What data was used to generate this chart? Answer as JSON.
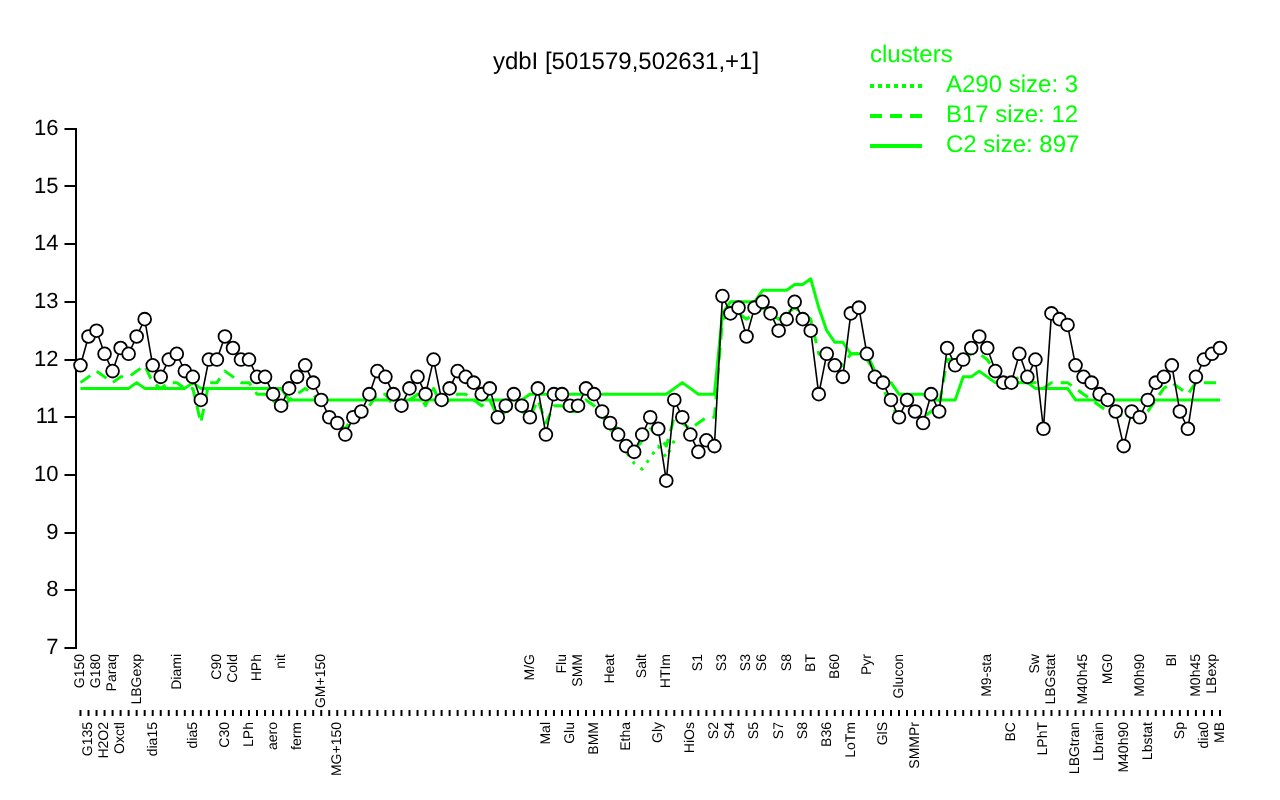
{
  "chart_data": {
    "type": "line",
    "title": "ydbI [501579,502631,+1]",
    "legend_title": "clusters",
    "legend": "top right",
    "grid": false,
    "ylim": [
      7,
      16
    ],
    "yticks": [
      7,
      8,
      9,
      10,
      11,
      12,
      13,
      14,
      15,
      16
    ],
    "categories": [
      "G150",
      "G135",
      "G180",
      "H2O2",
      "Paraq",
      "Oxctl",
      null,
      "LBGexp",
      null,
      "dia15",
      null,
      null,
      "Diami",
      null,
      "dia5",
      null,
      null,
      "C90",
      "C30",
      "Cold",
      null,
      "LPh",
      "HPh",
      null,
      "aero",
      "nit",
      null,
      "ferm",
      null,
      null,
      "GM+150",
      null,
      "MG+150",
      null,
      null,
      null,
      null,
      null,
      null,
      null,
      null,
      null,
      null,
      null,
      null,
      null,
      null,
      null,
      null,
      null,
      null,
      null,
      null,
      null,
      null,
      null,
      "M/G",
      null,
      "Mal",
      null,
      "Flu",
      "Glu",
      "SMM",
      null,
      "BMM",
      null,
      "Heat",
      null,
      "Etha",
      null,
      "Salt",
      null,
      "Gly",
      "HTIm",
      null,
      null,
      "HiOs",
      "S1",
      null,
      "S2",
      "S3",
      "S4",
      null,
      "S3",
      "S5",
      "S6",
      null,
      "S7",
      "S8",
      null,
      "S8",
      "BT",
      null,
      "B36",
      "B60",
      null,
      "LoTm",
      null,
      "Pyr",
      null,
      "GlS",
      null,
      "Glucon",
      null,
      "SMMPr",
      null,
      null,
      null,
      null,
      null,
      null,
      null,
      null,
      "M9-sta",
      null,
      null,
      "BC",
      null,
      null,
      "Sw",
      "LPhT",
      "LBGstat",
      null,
      null,
      "LBGtran",
      "M40h45",
      null,
      "Lbrain",
      "MG0",
      null,
      "M40h90",
      null,
      "M0h90",
      "Lbstat",
      null,
      null,
      "Bl",
      "Sp",
      null,
      "M0h45",
      "dia0",
      "LBexp",
      "MB"
    ],
    "series": [
      {
        "color": "#000000",
        "marker": "circle",
        "values": [
          11.9,
          12.4,
          12.5,
          12.1,
          11.8,
          12.2,
          12.1,
          12.4,
          12.7,
          11.9,
          11.7,
          12.0,
          12.1,
          11.8,
          11.7,
          11.3,
          12.0,
          12.0,
          12.4,
          12.2,
          12.0,
          12.0,
          11.7,
          11.7,
          11.4,
          11.2,
          11.5,
          11.7,
          11.9,
          11.6,
          11.3,
          11.0,
          10.9,
          10.7,
          11.0,
          11.1,
          11.4,
          11.8,
          11.7,
          11.4,
          11.2,
          11.5,
          11.7,
          11.4,
          12.0,
          11.3,
          11.5,
          11.8,
          11.7,
          11.6,
          11.4,
          11.5,
          11.0,
          11.2,
          11.4,
          11.2,
          11.0,
          11.5,
          10.7,
          11.4,
          11.4,
          11.2,
          11.2,
          11.5,
          11.4,
          11.1,
          10.9,
          10.7,
          10.5,
          10.4,
          10.7,
          11.0,
          10.8,
          9.9,
          11.3,
          11.0,
          10.7,
          10.4,
          10.6,
          10.5,
          13.1,
          12.8,
          12.9,
          12.4,
          12.9,
          13.0,
          12.8,
          12.5,
          12.7,
          13.0,
          12.7,
          12.5,
          11.4,
          12.1,
          11.9,
          11.7,
          12.8,
          12.9,
          12.1,
          11.7,
          11.6,
          11.3,
          11.0,
          11.3,
          11.1,
          10.9,
          11.4,
          11.1,
          12.2,
          11.9,
          12.0,
          12.2,
          12.4,
          12.2,
          11.8,
          11.6,
          11.6,
          12.1,
          11.7,
          12.0,
          10.8,
          12.8,
          12.7,
          12.6,
          11.9,
          11.7,
          11.6,
          11.4,
          11.3,
          11.1,
          10.5,
          11.1,
          11.0,
          11.3,
          11.6,
          11.7,
          11.9,
          11.1,
          10.8,
          11.7,
          12.0,
          12.1,
          12.2
        ]
      },
      {
        "name": "A290 size: 3",
        "color": "#00ff00",
        "marker": "none",
        "line_style": "dotted",
        "values": [
          null,
          null,
          null,
          null,
          null,
          null,
          null,
          null,
          null,
          null,
          null,
          null,
          null,
          null,
          null,
          null,
          null,
          null,
          null,
          null,
          null,
          null,
          null,
          null,
          null,
          null,
          null,
          null,
          null,
          null,
          null,
          null,
          null,
          null,
          null,
          null,
          null,
          null,
          null,
          null,
          null,
          null,
          null,
          null,
          null,
          null,
          null,
          null,
          null,
          null,
          null,
          null,
          null,
          null,
          null,
          null,
          null,
          null,
          null,
          null,
          null,
          null,
          null,
          null,
          null,
          null,
          10.8,
          10.6,
          10.4,
          10.2,
          10.1,
          10.3,
          10.5,
          10.3,
          10.6,
          null,
          null,
          null,
          null,
          null,
          null,
          null,
          null,
          null,
          null,
          null,
          null,
          null,
          null,
          null,
          null,
          null,
          null,
          null,
          null,
          null,
          null,
          null,
          null,
          null,
          null,
          null,
          null,
          null,
          null,
          null,
          null,
          null,
          null,
          null,
          null,
          null,
          null,
          null,
          null,
          null,
          null,
          null,
          null,
          null,
          null,
          null,
          null,
          null,
          null,
          null,
          null,
          null,
          null,
          null,
          null,
          null,
          null,
          null,
          null,
          null,
          null,
          null,
          null,
          null,
          null,
          null,
          null
        ]
      },
      {
        "name": "B17 size: 12",
        "color": "#00ff00",
        "marker": "none",
        "line_style": "dashed",
        "values": [
          11.6,
          11.7,
          11.8,
          11.7,
          11.6,
          11.7,
          11.7,
          11.8,
          11.9,
          11.6,
          11.5,
          11.6,
          11.6,
          11.5,
          11.5,
          10.9,
          11.6,
          11.6,
          11.8,
          11.7,
          11.6,
          11.6,
          11.4,
          11.4,
          11.3,
          11.1,
          11.3,
          11.4,
          11.5,
          11.4,
          11.2,
          11.0,
          10.9,
          10.8,
          11.0,
          11.1,
          11.2,
          11.4,
          11.4,
          11.2,
          11.1,
          11.3,
          11.4,
          11.2,
          11.5,
          11.2,
          11.3,
          11.4,
          11.4,
          11.3,
          11.2,
          11.3,
          11.0,
          11.1,
          11.2,
          11.1,
          11.0,
          11.3,
          10.9,
          11.2,
          11.2,
          11.1,
          11.1,
          11.3,
          11.2,
          11.0,
          10.9,
          10.8,
          10.6,
          10.4,
          10.6,
          10.8,
          10.7,
          10.5,
          11.0,
          10.9,
          10.8,
          10.9,
          11.0,
          11.0,
          12.7,
          12.8,
          12.8,
          12.7,
          12.8,
          12.9,
          12.8,
          12.7,
          12.8,
          12.9,
          12.8,
          12.7,
          12.1,
          12.0,
          12.0,
          11.9,
          12.1,
          12.1,
          12.0,
          11.8,
          11.5,
          11.2,
          11.0,
          11.1,
          11.1,
          11.0,
          11.1,
          11.2,
          12.0,
          12.0,
          12.0,
          12.1,
          12.1,
          12.0,
          11.8,
          11.6,
          11.6,
          11.7,
          11.6,
          11.6,
          11.5,
          11.6,
          11.6,
          11.6,
          11.5,
          11.4,
          11.3,
          11.2,
          11.1,
          11.1,
          11.0,
          11.0,
          11.0,
          11.1,
          11.3,
          11.5,
          11.6,
          11.5,
          11.4,
          11.6,
          11.6,
          11.6,
          11.6
        ]
      },
      {
        "name": "C2 size: 897",
        "color": "#00ff00",
        "marker": "none",
        "line_style": "solid",
        "values": [
          11.5,
          11.5,
          11.5,
          11.5,
          11.5,
          11.5,
          11.5,
          11.6,
          11.5,
          11.5,
          11.5,
          11.5,
          11.5,
          11.5,
          11.6,
          11.5,
          11.5,
          11.5,
          11.5,
          11.5,
          11.5,
          11.5,
          11.5,
          11.5,
          11.5,
          11.5,
          11.3,
          11.3,
          11.3,
          11.3,
          11.3,
          11.3,
          11.3,
          11.3,
          11.3,
          11.3,
          11.3,
          11.3,
          11.3,
          11.3,
          11.3,
          11.3,
          11.3,
          11.3,
          11.3,
          11.3,
          11.3,
          11.3,
          11.3,
          11.3,
          11.3,
          11.3,
          11.3,
          11.3,
          11.3,
          11.3,
          11.4,
          11.4,
          11.4,
          11.4,
          11.4,
          11.4,
          11.4,
          11.4,
          11.4,
          11.4,
          11.4,
          11.4,
          11.4,
          11.4,
          11.4,
          11.4,
          11.4,
          11.4,
          11.5,
          11.6,
          11.5,
          11.4,
          11.4,
          11.4,
          12.8,
          13.0,
          13.0,
          13.0,
          13.0,
          13.2,
          13.2,
          13.2,
          13.2,
          13.3,
          13.3,
          13.4,
          12.9,
          12.5,
          12.3,
          12.3,
          12.1,
          12.1,
          12.1,
          11.8,
          11.6,
          11.6,
          11.4,
          11.4,
          11.4,
          11.4,
          11.3,
          11.3,
          11.3,
          11.3,
          11.7,
          11.7,
          11.8,
          11.7,
          11.6,
          11.6,
          11.6,
          11.6,
          11.6,
          11.5,
          11.5,
          11.5,
          11.5,
          11.5,
          11.3,
          11.3,
          11.3,
          11.3,
          11.3,
          11.3,
          11.3,
          11.3,
          11.3,
          11.3,
          11.3,
          11.3,
          11.3,
          11.3,
          11.3,
          11.3,
          11.3,
          11.3,
          11.3
        ]
      }
    ]
  }
}
